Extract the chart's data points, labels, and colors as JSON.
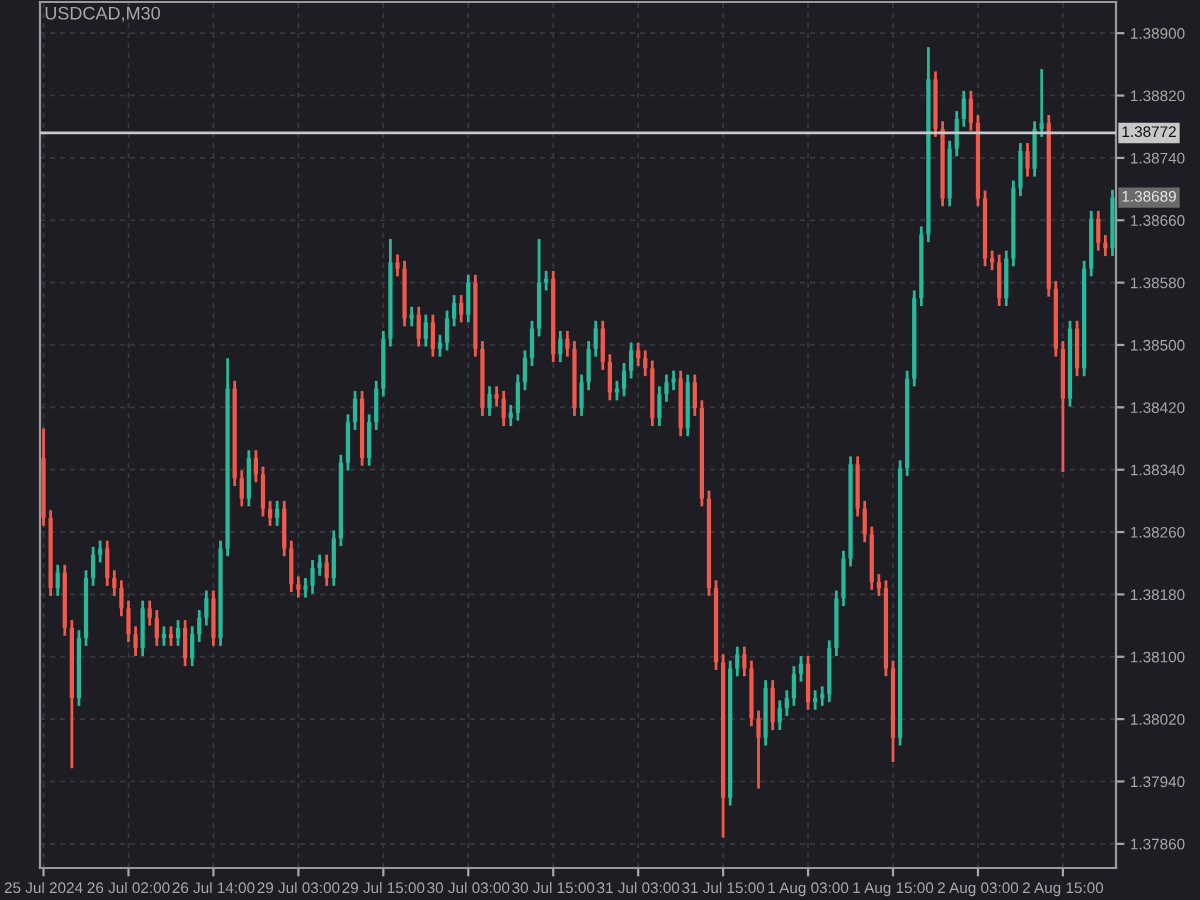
{
  "chart_data": {
    "type": "candlestick",
    "title": "USDCAD,M30",
    "categories": [
      "25 Jul 2024",
      null,
      null,
      null,
      null,
      null,
      null,
      null,
      null,
      null,
      null,
      null,
      "26 Jul 02:00",
      null,
      null,
      null,
      null,
      null,
      null,
      null,
      null,
      null,
      null,
      null,
      "26 Jul 14:00",
      null,
      null,
      null,
      null,
      null,
      null,
      null,
      null,
      null,
      null,
      null,
      "29 Jul 03:00",
      null,
      null,
      null,
      null,
      null,
      null,
      null,
      null,
      null,
      null,
      null,
      "29 Jul 15:00",
      null,
      null,
      null,
      null,
      null,
      null,
      null,
      null,
      null,
      null,
      null,
      "30 Jul 03:00",
      null,
      null,
      null,
      null,
      null,
      null,
      null,
      null,
      null,
      null,
      null,
      "30 Jul 15:00",
      null,
      null,
      null,
      null,
      null,
      null,
      null,
      null,
      null,
      null,
      null,
      "31 Jul 03:00",
      null,
      null,
      null,
      null,
      null,
      null,
      null,
      null,
      null,
      null,
      null,
      "31 Jul 15:00",
      null,
      null,
      null,
      null,
      null,
      null,
      null,
      null,
      null,
      null,
      null,
      "1 Aug 03:00",
      null,
      null,
      null,
      null,
      null,
      null,
      null,
      null,
      null,
      null,
      null,
      "1 Aug 15:00",
      null,
      null,
      null,
      null,
      null,
      null,
      null,
      null,
      null,
      null,
      null,
      "2 Aug 03:00",
      null,
      null,
      null,
      null,
      null,
      null,
      null,
      null,
      null,
      null,
      null,
      "2 Aug 15:00",
      null,
      null,
      null,
      null,
      null,
      null,
      null
    ],
    "ohlc": [
      [
        1.38355,
        1.38393,
        1.38268,
        1.38278
      ],
      [
        1.38278,
        1.38288,
        1.38178,
        1.38188
      ],
      [
        1.38188,
        1.38218,
        1.38178,
        1.38208
      ],
      [
        1.38208,
        1.38218,
        1.38127,
        1.38137
      ],
      [
        1.38137,
        1.38147,
        1.37957,
        1.38047
      ],
      [
        1.38047,
        1.38134,
        1.38037,
        1.38124
      ],
      [
        1.38124,
        1.38211,
        1.38114,
        1.38201
      ],
      [
        1.38201,
        1.38241,
        1.38191,
        1.38231
      ],
      [
        1.38231,
        1.38249,
        1.38221,
        1.38239
      ],
      [
        1.38239,
        1.38249,
        1.38191,
        1.38201
      ],
      [
        1.38201,
        1.38211,
        1.38178,
        1.38188
      ],
      [
        1.38188,
        1.38198,
        1.38152,
        1.38162
      ],
      [
        1.38162,
        1.38172,
        1.38119,
        1.38129
      ],
      [
        1.38129,
        1.38139,
        1.38101,
        1.38111
      ],
      [
        1.38111,
        1.38172,
        1.38101,
        1.38162
      ],
      [
        1.38162,
        1.38172,
        1.3814,
        1.3815
      ],
      [
        1.3815,
        1.3816,
        1.38114,
        1.38124
      ],
      [
        1.38124,
        1.38139,
        1.38114,
        1.38129
      ],
      [
        1.38129,
        1.38139,
        1.38114,
        1.38124
      ],
      [
        1.38124,
        1.38147,
        1.38114,
        1.38137
      ],
      [
        1.38137,
        1.38147,
        1.38088,
        1.38098
      ],
      [
        1.38098,
        1.38139,
        1.38088,
        1.38129
      ],
      [
        1.38129,
        1.3816,
        1.38119,
        1.3815
      ],
      [
        1.3815,
        1.38185,
        1.3814,
        1.38175
      ],
      [
        1.38175,
        1.38185,
        1.38114,
        1.38124
      ],
      [
        1.38124,
        1.38249,
        1.38114,
        1.38239
      ],
      [
        1.38239,
        1.38483,
        1.38229,
        1.38444
      ],
      [
        1.38444,
        1.38454,
        1.38319,
        1.38329
      ],
      [
        1.38329,
        1.38339,
        1.38293,
        1.38303
      ],
      [
        1.38303,
        1.38365,
        1.38293,
        1.38355
      ],
      [
        1.38355,
        1.38365,
        1.38324,
        1.38334
      ],
      [
        1.38334,
        1.38344,
        1.3828,
        1.3829
      ],
      [
        1.3829,
        1.383,
        1.38268,
        1.38278
      ],
      [
        1.38278,
        1.383,
        1.38268,
        1.3829
      ],
      [
        1.3829,
        1.383,
        1.38229,
        1.38239
      ],
      [
        1.38239,
        1.38249,
        1.38183,
        1.38193
      ],
      [
        1.38193,
        1.38203,
        1.38176,
        1.38186
      ],
      [
        1.38186,
        1.38201,
        1.38176,
        1.38191
      ],
      [
        1.38191,
        1.38224,
        1.38181,
        1.38214
      ],
      [
        1.38214,
        1.38231,
        1.38204,
        1.38221
      ],
      [
        1.38221,
        1.38231,
        1.38191,
        1.38201
      ],
      [
        1.38201,
        1.38262,
        1.38191,
        1.38252
      ],
      [
        1.38252,
        1.38359,
        1.38242,
        1.38349
      ],
      [
        1.38349,
        1.38411,
        1.38339,
        1.38401
      ],
      [
        1.38401,
        1.38441,
        1.38391,
        1.38431
      ],
      [
        1.38431,
        1.38441,
        1.38345,
        1.38355
      ],
      [
        1.38355,
        1.38411,
        1.38345,
        1.38401
      ],
      [
        1.38401,
        1.38454,
        1.38391,
        1.38444
      ],
      [
        1.38444,
        1.38518,
        1.38434,
        1.38508
      ],
      [
        1.38508,
        1.38636,
        1.38498,
        1.38606
      ],
      [
        1.38606,
        1.38616,
        1.38588,
        1.38598
      ],
      [
        1.38598,
        1.38608,
        1.38524,
        1.38534
      ],
      [
        1.38534,
        1.38549,
        1.38524,
        1.38539
      ],
      [
        1.38539,
        1.38549,
        1.38498,
        1.38508
      ],
      [
        1.38508,
        1.38539,
        1.38498,
        1.38529
      ],
      [
        1.38529,
        1.38539,
        1.38485,
        1.38495
      ],
      [
        1.38495,
        1.38513,
        1.38485,
        1.38503
      ],
      [
        1.38503,
        1.38544,
        1.38493,
        1.38534
      ],
      [
        1.38534,
        1.38564,
        1.38524,
        1.38554
      ],
      [
        1.38554,
        1.38564,
        1.38529,
        1.38539
      ],
      [
        1.38539,
        1.3859,
        1.38529,
        1.3858
      ],
      [
        1.3858,
        1.3859,
        1.38485,
        1.38495
      ],
      [
        1.38495,
        1.38505,
        1.38409,
        1.38419
      ],
      [
        1.38419,
        1.38447,
        1.38409,
        1.38437
      ],
      [
        1.38437,
        1.38447,
        1.38421,
        1.38431
      ],
      [
        1.38431,
        1.38441,
        1.38396,
        1.38406
      ],
      [
        1.38406,
        1.38423,
        1.38396,
        1.38413
      ],
      [
        1.38413,
        1.38462,
        1.38403,
        1.38452
      ],
      [
        1.38452,
        1.38493,
        1.38442,
        1.38483
      ],
      [
        1.38483,
        1.38531,
        1.38473,
        1.38521
      ],
      [
        1.38521,
        1.38636,
        1.38511,
        1.3858
      ],
      [
        1.3858,
        1.38595,
        1.3857,
        1.38585
      ],
      [
        1.38585,
        1.38595,
        1.38478,
        1.38488
      ],
      [
        1.38488,
        1.38518,
        1.38478,
        1.38508
      ],
      [
        1.38508,
        1.38518,
        1.38485,
        1.38495
      ],
      [
        1.38495,
        1.38505,
        1.38409,
        1.38419
      ],
      [
        1.38419,
        1.38462,
        1.38409,
        1.38452
      ],
      [
        1.38452,
        1.38505,
        1.38442,
        1.38495
      ],
      [
        1.38495,
        1.38531,
        1.38485,
        1.38521
      ],
      [
        1.38521,
        1.38531,
        1.38468,
        1.38478
      ],
      [
        1.38478,
        1.38488,
        1.38429,
        1.38439
      ],
      [
        1.38439,
        1.38454,
        1.38429,
        1.38444
      ],
      [
        1.38444,
        1.38477,
        1.38434,
        1.38467
      ],
      [
        1.38467,
        1.38503,
        1.38457,
        1.38493
      ],
      [
        1.38493,
        1.38503,
        1.38473,
        1.38483
      ],
      [
        1.38483,
        1.38493,
        1.3846,
        1.3847
      ],
      [
        1.3847,
        1.3848,
        1.38396,
        1.38406
      ],
      [
        1.38406,
        1.38447,
        1.38396,
        1.38437
      ],
      [
        1.38437,
        1.38462,
        1.38427,
        1.38452
      ],
      [
        1.38452,
        1.38467,
        1.38442,
        1.38457
      ],
      [
        1.38457,
        1.38467,
        1.38383,
        1.38393
      ],
      [
        1.38393,
        1.38462,
        1.38383,
        1.38452
      ],
      [
        1.38452,
        1.38462,
        1.38409,
        1.38419
      ],
      [
        1.38419,
        1.38429,
        1.38293,
        1.38303
      ],
      [
        1.38303,
        1.38313,
        1.38178,
        1.38188
      ],
      [
        1.38188,
        1.38198,
        1.38083,
        1.38093
      ],
      [
        1.38093,
        1.38103,
        1.37868,
        1.37919
      ],
      [
        1.37919,
        1.38095,
        1.37909,
        1.38085
      ],
      [
        1.38085,
        1.38113,
        1.38075,
        1.38103
      ],
      [
        1.38103,
        1.38113,
        1.38075,
        1.38085
      ],
      [
        1.38085,
        1.38095,
        1.38011,
        1.38021
      ],
      [
        1.38021,
        1.38031,
        1.37931,
        1.37996
      ],
      [
        1.37996,
        1.3807,
        1.37986,
        1.3806
      ],
      [
        1.3806,
        1.3807,
        1.38006,
        1.38016
      ],
      [
        1.38016,
        1.38044,
        1.38006,
        1.38034
      ],
      [
        1.38034,
        1.38057,
        1.38024,
        1.38047
      ],
      [
        1.38047,
        1.38088,
        1.38037,
        1.38078
      ],
      [
        1.38078,
        1.38101,
        1.38068,
        1.38091
      ],
      [
        1.38091,
        1.38101,
        1.38032,
        1.38042
      ],
      [
        1.38042,
        1.38057,
        1.38032,
        1.38047
      ],
      [
        1.38047,
        1.38062,
        1.38037,
        1.38052
      ],
      [
        1.38052,
        1.38121,
        1.38042,
        1.38111
      ],
      [
        1.38111,
        1.38185,
        1.38101,
        1.38175
      ],
      [
        1.38175,
        1.38236,
        1.38165,
        1.38226
      ],
      [
        1.38226,
        1.38357,
        1.38216,
        1.38347
      ],
      [
        1.38347,
        1.38357,
        1.3828,
        1.3829
      ],
      [
        1.3829,
        1.383,
        1.38247,
        1.38257
      ],
      [
        1.38257,
        1.38267,
        1.38186,
        1.38196
      ],
      [
        1.38196,
        1.38206,
        1.38178,
        1.38188
      ],
      [
        1.38188,
        1.38198,
        1.38075,
        1.38085
      ],
      [
        1.38085,
        1.38095,
        1.37965,
        1.37996
      ],
      [
        1.37996,
        1.38352,
        1.37986,
        1.38342
      ],
      [
        1.38342,
        1.38467,
        1.38332,
        1.38457
      ],
      [
        1.38457,
        1.3857,
        1.38447,
        1.3856
      ],
      [
        1.3856,
        1.38652,
        1.3855,
        1.38642
      ],
      [
        1.38642,
        1.38882,
        1.38632,
        1.38841
      ],
      [
        1.38841,
        1.38851,
        1.38767,
        1.38777
      ],
      [
        1.38777,
        1.38787,
        1.38678,
        1.38688
      ],
      [
        1.38688,
        1.38762,
        1.38678,
        1.38752
      ],
      [
        1.38752,
        1.388,
        1.38742,
        1.3879
      ],
      [
        1.3879,
        1.38826,
        1.3878,
        1.38816
      ],
      [
        1.38816,
        1.38826,
        1.38775,
        1.38785
      ],
      [
        1.38785,
        1.38795,
        1.38678,
        1.38688
      ],
      [
        1.38688,
        1.38698,
        1.38601,
        1.38611
      ],
      [
        1.38611,
        1.38621,
        1.38596,
        1.38606
      ],
      [
        1.38606,
        1.38616,
        1.3855,
        1.3856
      ],
      [
        1.3856,
        1.38621,
        1.3855,
        1.38611
      ],
      [
        1.38611,
        1.38711,
        1.38601,
        1.38701
      ],
      [
        1.38701,
        1.38759,
        1.38691,
        1.38749
      ],
      [
        1.38749,
        1.38759,
        1.38716,
        1.38726
      ],
      [
        1.38726,
        1.38787,
        1.38716,
        1.38777
      ],
      [
        1.38777,
        1.38854,
        1.38767,
        1.38785
      ],
      [
        1.38785,
        1.38795,
        1.38562,
        1.38572
      ],
      [
        1.38572,
        1.38582,
        1.38485,
        1.38495
      ],
      [
        1.38495,
        1.38505,
        1.38337,
        1.38431
      ],
      [
        1.38431,
        1.38531,
        1.38421,
        1.38521
      ],
      [
        1.38521,
        1.38531,
        1.3846,
        1.3847
      ],
      [
        1.3847,
        1.38608,
        1.3846,
        1.38598
      ],
      [
        1.38598,
        1.38672,
        1.38588,
        1.38662
      ],
      [
        1.38662,
        1.38672,
        1.38621,
        1.38631
      ],
      [
        1.38631,
        1.38641,
        1.38614,
        1.38624
      ],
      [
        1.38624,
        1.38699,
        1.38614,
        1.38689
      ]
    ],
    "ylim": [
      1.37829,
      1.3894
    ],
    "yticks": [
      {
        "value": 1.3786,
        "label": "1.37860"
      },
      {
        "value": 1.3794,
        "label": "1.37940"
      },
      {
        "value": 1.3802,
        "label": "1.38020"
      },
      {
        "value": 1.381,
        "label": "1.38100"
      },
      {
        "value": 1.3818,
        "label": "1.38180"
      },
      {
        "value": 1.3826,
        "label": "1.38260"
      },
      {
        "value": 1.3834,
        "label": "1.38340"
      },
      {
        "value": 1.3842,
        "label": "1.38420"
      },
      {
        "value": 1.385,
        "label": "1.38500"
      },
      {
        "value": 1.3858,
        "label": "1.38580"
      },
      {
        "value": 1.3866,
        "label": "1.38660"
      },
      {
        "value": 1.3874,
        "label": "1.38740"
      },
      {
        "value": 1.3882,
        "label": "1.38820"
      },
      {
        "value": 1.389,
        "label": "1.38900"
      }
    ],
    "ref_lines": [
      {
        "axis": "y",
        "value": 1.38772,
        "label": "1.38772",
        "color": "#c8c8c8"
      }
    ],
    "annotations": [
      {
        "text": "1.38689",
        "y": 1.38689
      }
    ],
    "grid": true,
    "legend": false
  }
}
